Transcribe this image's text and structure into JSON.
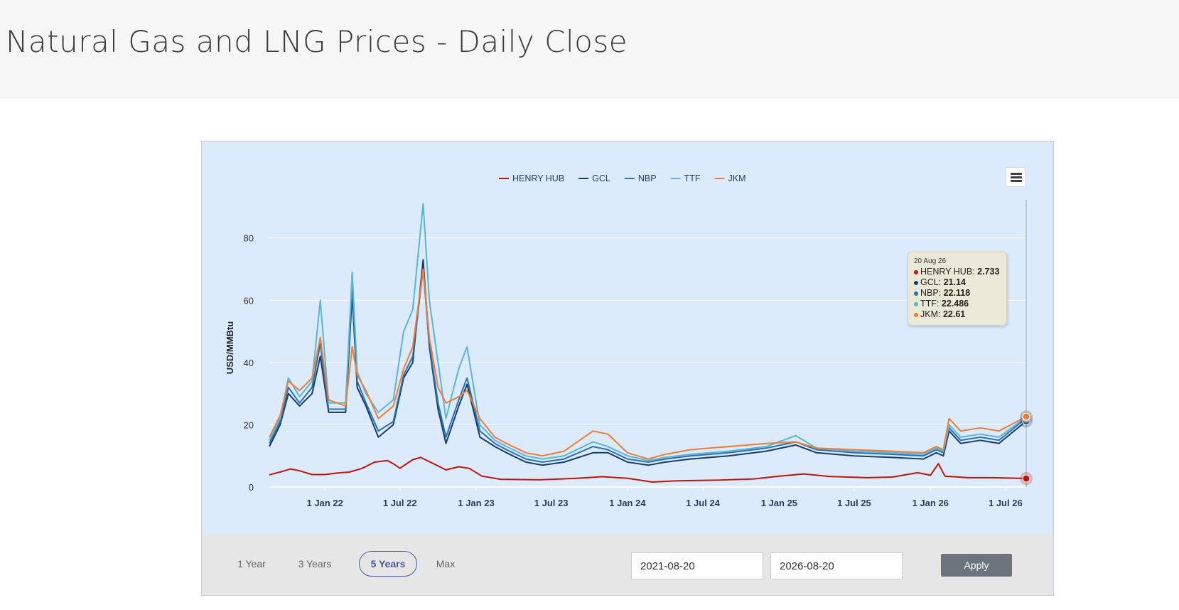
{
  "header": {
    "title": "Natural Gas and LNG Prices - Daily Close"
  },
  "controls": {
    "ranges": [
      "1 Year",
      "3 Years",
      "5 Years",
      "Max"
    ],
    "active_range": "5 Years",
    "start_date": "2021-08-20",
    "end_date": "2026-08-20",
    "apply_label": "Apply"
  },
  "icons": {
    "menu": "hamburger-menu-icon"
  },
  "colors": {
    "plot_bg": "#dcebfb",
    "controls_bg": "#e6e6e6",
    "accent": "#4a5a9a"
  },
  "tooltip": {
    "date": "20 Aug 26",
    "rows": [
      {
        "name": "HENRY HUB",
        "value": "2.733",
        "color": "#c0150a"
      },
      {
        "name": "GCL",
        "value": "21.14",
        "color": "#163d6b"
      },
      {
        "name": "NBP",
        "value": "22.118",
        "color": "#2a70b3"
      },
      {
        "name": "TTF",
        "value": "22.486",
        "color": "#5bb5d5"
      },
      {
        "name": "JKM",
        "value": "22.61",
        "color": "#ef7d32"
      }
    ]
  },
  "chart_data": {
    "type": "line",
    "title": "",
    "xlabel": "",
    "ylabel": "USD/MMBtu",
    "ylim": [
      0,
      95
    ],
    "yticks": [
      0,
      20,
      40,
      60,
      80
    ],
    "xlim": [
      "2021-08-20",
      "2026-08-20"
    ],
    "xticks": [
      {
        "date": "2022-01-01",
        "label": "1 Jan 22"
      },
      {
        "date": "2022-07-01",
        "label": "1 Jul 22"
      },
      {
        "date": "2023-01-01",
        "label": "1 Jan 23"
      },
      {
        "date": "2023-07-01",
        "label": "1 Jul 23"
      },
      {
        "date": "2024-01-01",
        "label": "1 Jan 24"
      },
      {
        "date": "2024-07-01",
        "label": "1 Jul 24"
      },
      {
        "date": "2025-01-01",
        "label": "1 Jan 25"
      },
      {
        "date": "2025-07-01",
        "label": "1 Jul 25"
      },
      {
        "date": "2026-01-01",
        "label": "1 Jan 26"
      },
      {
        "date": "2026-07-01",
        "label": "1 Jul 26"
      }
    ],
    "grid": true,
    "legend": "top-center",
    "series": [
      {
        "name": "HENRY HUB",
        "color": "#c0150a",
        "points": [
          [
            "2021-08-20",
            3.9
          ],
          [
            "2021-09-20",
            5.0
          ],
          [
            "2021-10-10",
            5.8
          ],
          [
            "2021-11-01",
            5.2
          ],
          [
            "2021-12-01",
            4.0
          ],
          [
            "2022-01-01",
            4.0
          ],
          [
            "2022-02-01",
            4.5
          ],
          [
            "2022-03-01",
            4.8
          ],
          [
            "2022-04-01",
            6.0
          ],
          [
            "2022-05-01",
            8.0
          ],
          [
            "2022-06-01",
            8.5
          ],
          [
            "2022-06-15",
            7.5
          ],
          [
            "2022-07-01",
            6.0
          ],
          [
            "2022-08-01",
            8.8
          ],
          [
            "2022-08-20",
            9.5
          ],
          [
            "2022-09-20",
            7.5
          ],
          [
            "2022-10-20",
            5.5
          ],
          [
            "2022-11-20",
            6.5
          ],
          [
            "2022-12-15",
            6.0
          ],
          [
            "2023-01-15",
            3.5
          ],
          [
            "2023-03-01",
            2.5
          ],
          [
            "2023-06-01",
            2.3
          ],
          [
            "2023-09-01",
            2.8
          ],
          [
            "2023-11-01",
            3.3
          ],
          [
            "2024-01-01",
            2.8
          ],
          [
            "2024-03-01",
            1.6
          ],
          [
            "2024-05-01",
            2.0
          ],
          [
            "2024-08-01",
            2.2
          ],
          [
            "2024-11-01",
            2.6
          ],
          [
            "2025-01-01",
            3.5
          ],
          [
            "2025-03-01",
            4.2
          ],
          [
            "2025-05-01",
            3.4
          ],
          [
            "2025-08-01",
            3.0
          ],
          [
            "2025-10-01",
            3.2
          ],
          [
            "2025-12-01",
            4.6
          ],
          [
            "2026-01-01",
            3.8
          ],
          [
            "2026-01-20",
            7.5
          ],
          [
            "2026-02-05",
            3.5
          ],
          [
            "2026-04-01",
            3.0
          ],
          [
            "2026-06-01",
            3.0
          ],
          [
            "2026-08-20",
            2.733
          ]
        ]
      },
      {
        "name": "GCL",
        "color": "#163d6b",
        "points": [
          [
            "2021-08-20",
            13.0
          ],
          [
            "2021-09-15",
            20.0
          ],
          [
            "2021-10-05",
            30.0
          ],
          [
            "2021-11-01",
            26.0
          ],
          [
            "2021-12-01",
            30.0
          ],
          [
            "2021-12-21",
            42.0
          ],
          [
            "2022-01-10",
            24.0
          ],
          [
            "2022-02-20",
            24.0
          ],
          [
            "2022-03-08",
            62.0
          ],
          [
            "2022-03-20",
            32.0
          ],
          [
            "2022-04-10",
            26.0
          ],
          [
            "2022-05-10",
            16.0
          ],
          [
            "2022-06-15",
            20.0
          ],
          [
            "2022-07-10",
            35.0
          ],
          [
            "2022-08-01",
            40.0
          ],
          [
            "2022-08-26",
            73.0
          ],
          [
            "2022-09-10",
            45.0
          ],
          [
            "2022-10-01",
            25.0
          ],
          [
            "2022-10-20",
            14.0
          ],
          [
            "2022-11-20",
            26.0
          ],
          [
            "2022-12-10",
            33.0
          ],
          [
            "2023-01-10",
            16.0
          ],
          [
            "2023-02-15",
            13.0
          ],
          [
            "2023-03-15",
            11.0
          ],
          [
            "2023-05-01",
            8.0
          ],
          [
            "2023-06-10",
            7.0
          ],
          [
            "2023-08-01",
            8.0
          ],
          [
            "2023-10-10",
            11.0
          ],
          [
            "2023-11-15",
            11.0
          ],
          [
            "2024-01-01",
            8.0
          ],
          [
            "2024-02-20",
            7.0
          ],
          [
            "2024-04-01",
            8.0
          ],
          [
            "2024-06-01",
            9.0
          ],
          [
            "2024-09-01",
            10.0
          ],
          [
            "2024-12-01",
            11.5
          ],
          [
            "2025-02-10",
            13.5
          ],
          [
            "2025-04-01",
            11.0
          ],
          [
            "2025-07-01",
            10.0
          ],
          [
            "2025-10-01",
            9.5
          ],
          [
            "2025-12-15",
            9.0
          ],
          [
            "2026-01-15",
            11.0
          ],
          [
            "2026-02-01",
            10.0
          ],
          [
            "2026-02-15",
            18.0
          ],
          [
            "2026-03-15",
            14.0
          ],
          [
            "2026-05-01",
            15.0
          ],
          [
            "2026-06-15",
            14.0
          ],
          [
            "2026-08-20",
            21.14
          ]
        ]
      },
      {
        "name": "NBP",
        "color": "#2a70b3",
        "points": [
          [
            "2021-08-20",
            14.0
          ],
          [
            "2021-09-15",
            21.0
          ],
          [
            "2021-10-05",
            32.0
          ],
          [
            "2021-11-01",
            27.0
          ],
          [
            "2021-12-01",
            32.0
          ],
          [
            "2021-12-21",
            46.0
          ],
          [
            "2022-01-10",
            25.0
          ],
          [
            "2022-02-20",
            25.0
          ],
          [
            "2022-03-08",
            65.0
          ],
          [
            "2022-03-20",
            34.0
          ],
          [
            "2022-04-10",
            27.0
          ],
          [
            "2022-05-10",
            18.0
          ],
          [
            "2022-06-15",
            21.0
          ],
          [
            "2022-07-10",
            36.0
          ],
          [
            "2022-08-01",
            42.0
          ],
          [
            "2022-08-26",
            70.0
          ],
          [
            "2022-09-10",
            46.0
          ],
          [
            "2022-10-01",
            27.0
          ],
          [
            "2022-10-20",
            16.0
          ],
          [
            "2022-11-20",
            28.0
          ],
          [
            "2022-12-10",
            35.0
          ],
          [
            "2023-01-10",
            18.0
          ],
          [
            "2023-02-15",
            14.0
          ],
          [
            "2023-03-15",
            12.0
          ],
          [
            "2023-05-01",
            9.0
          ],
          [
            "2023-06-10",
            8.0
          ],
          [
            "2023-08-01",
            9.0
          ],
          [
            "2023-10-10",
            13.0
          ],
          [
            "2023-11-15",
            12.0
          ],
          [
            "2024-01-01",
            9.0
          ],
          [
            "2024-02-20",
            8.0
          ],
          [
            "2024-04-01",
            9.0
          ],
          [
            "2024-06-01",
            10.0
          ],
          [
            "2024-09-01",
            11.0
          ],
          [
            "2024-12-01",
            12.5
          ],
          [
            "2025-02-10",
            14.5
          ],
          [
            "2025-04-01",
            12.0
          ],
          [
            "2025-07-01",
            11.0
          ],
          [
            "2025-10-01",
            10.5
          ],
          [
            "2025-12-15",
            10.0
          ],
          [
            "2026-01-15",
            12.0
          ],
          [
            "2026-02-01",
            11.0
          ],
          [
            "2026-02-15",
            19.0
          ],
          [
            "2026-03-15",
            15.0
          ],
          [
            "2026-05-01",
            16.0
          ],
          [
            "2026-06-15",
            15.0
          ],
          [
            "2026-08-20",
            22.118
          ]
        ]
      },
      {
        "name": "TTF",
        "color": "#5bb5d5",
        "points": [
          [
            "2021-08-20",
            15.0
          ],
          [
            "2021-09-15",
            22.0
          ],
          [
            "2021-10-05",
            35.0
          ],
          [
            "2021-11-01",
            29.0
          ],
          [
            "2021-12-01",
            34.0
          ],
          [
            "2021-12-21",
            60.0
          ],
          [
            "2022-01-10",
            27.0
          ],
          [
            "2022-02-20",
            27.0
          ],
          [
            "2022-03-08",
            69.0
          ],
          [
            "2022-03-20",
            37.0
          ],
          [
            "2022-04-10",
            30.0
          ],
          [
            "2022-05-10",
            24.0
          ],
          [
            "2022-06-15",
            28.0
          ],
          [
            "2022-07-10",
            50.0
          ],
          [
            "2022-08-01",
            57.0
          ],
          [
            "2022-08-26",
            91.0
          ],
          [
            "2022-09-10",
            60.0
          ],
          [
            "2022-10-01",
            40.0
          ],
          [
            "2022-10-20",
            22.0
          ],
          [
            "2022-11-20",
            38.0
          ],
          [
            "2022-12-10",
            45.0
          ],
          [
            "2023-01-10",
            20.0
          ],
          [
            "2023-02-15",
            15.0
          ],
          [
            "2023-03-15",
            13.0
          ],
          [
            "2023-05-01",
            10.0
          ],
          [
            "2023-06-10",
            9.0
          ],
          [
            "2023-08-01",
            10.0
          ],
          [
            "2023-10-10",
            14.5
          ],
          [
            "2023-11-15",
            13.0
          ],
          [
            "2024-01-01",
            10.0
          ],
          [
            "2024-02-20",
            8.5
          ],
          [
            "2024-04-01",
            9.5
          ],
          [
            "2024-06-01",
            10.5
          ],
          [
            "2024-09-01",
            11.5
          ],
          [
            "2024-12-01",
            13.0
          ],
          [
            "2025-02-10",
            16.5
          ],
          [
            "2025-04-01",
            12.5
          ],
          [
            "2025-07-01",
            11.5
          ],
          [
            "2025-10-01",
            11.0
          ],
          [
            "2025-12-15",
            10.5
          ],
          [
            "2026-01-15",
            12.5
          ],
          [
            "2026-02-01",
            11.5
          ],
          [
            "2026-02-15",
            20.0
          ],
          [
            "2026-03-15",
            16.0
          ],
          [
            "2026-05-01",
            17.0
          ],
          [
            "2026-06-15",
            16.0
          ],
          [
            "2026-08-20",
            22.486
          ]
        ]
      },
      {
        "name": "JKM",
        "color": "#ef7d32",
        "points": [
          [
            "2021-08-20",
            16.0
          ],
          [
            "2021-09-15",
            23.0
          ],
          [
            "2021-10-05",
            34.0
          ],
          [
            "2021-11-01",
            31.0
          ],
          [
            "2021-12-01",
            35.0
          ],
          [
            "2021-12-21",
            48.0
          ],
          [
            "2022-01-10",
            28.0
          ],
          [
            "2022-02-20",
            26.0
          ],
          [
            "2022-03-08",
            45.0
          ],
          [
            "2022-03-20",
            36.0
          ],
          [
            "2022-04-10",
            31.0
          ],
          [
            "2022-05-10",
            22.0
          ],
          [
            "2022-06-15",
            26.0
          ],
          [
            "2022-07-10",
            38.0
          ],
          [
            "2022-08-01",
            45.0
          ],
          [
            "2022-08-26",
            70.0
          ],
          [
            "2022-09-10",
            48.0
          ],
          [
            "2022-10-01",
            32.0
          ],
          [
            "2022-10-20",
            27.0
          ],
          [
            "2022-11-20",
            29.0
          ],
          [
            "2022-12-10",
            31.0
          ],
          [
            "2023-01-10",
            22.0
          ],
          [
            "2023-02-15",
            16.0
          ],
          [
            "2023-03-15",
            14.0
          ],
          [
            "2023-05-01",
            11.0
          ],
          [
            "2023-06-10",
            10.0
          ],
          [
            "2023-08-01",
            11.5
          ],
          [
            "2023-10-10",
            18.0
          ],
          [
            "2023-11-15",
            17.0
          ],
          [
            "2024-01-01",
            11.0
          ],
          [
            "2024-02-20",
            9.0
          ],
          [
            "2024-04-01",
            10.5
          ],
          [
            "2024-06-01",
            12.0
          ],
          [
            "2024-09-01",
            13.0
          ],
          [
            "2024-12-01",
            14.0
          ],
          [
            "2025-02-10",
            14.5
          ],
          [
            "2025-04-01",
            12.5
          ],
          [
            "2025-07-01",
            12.0
          ],
          [
            "2025-10-01",
            11.5
          ],
          [
            "2025-12-15",
            11.0
          ],
          [
            "2026-01-15",
            13.0
          ],
          [
            "2026-02-01",
            12.0
          ],
          [
            "2026-02-15",
            22.0
          ],
          [
            "2026-03-15",
            18.0
          ],
          [
            "2026-05-01",
            19.0
          ],
          [
            "2026-06-15",
            18.0
          ],
          [
            "2026-08-20",
            22.61
          ]
        ]
      }
    ]
  }
}
